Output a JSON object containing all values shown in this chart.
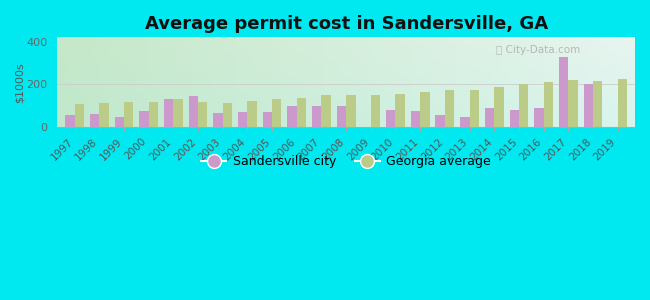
{
  "title": "Average permit cost in Sandersville, GA",
  "ylabel": "$1000s",
  "years": [
    1997,
    1998,
    1999,
    2000,
    2001,
    2002,
    2003,
    2004,
    2005,
    2006,
    2007,
    2008,
    2009,
    2010,
    2011,
    2012,
    2013,
    2014,
    2015,
    2016,
    2017,
    2018,
    2019
  ],
  "sandersville": [
    55,
    60,
    50,
    75,
    130,
    145,
    65,
    70,
    70,
    100,
    100,
    100,
    0,
    80,
    75,
    55,
    50,
    90,
    80,
    90,
    330,
    200,
    0
  ],
  "georgia": [
    110,
    115,
    120,
    120,
    130,
    120,
    115,
    125,
    130,
    135,
    150,
    150,
    150,
    155,
    165,
    175,
    175,
    190,
    200,
    210,
    220,
    215,
    225
  ],
  "city_color": "#cc99cc",
  "ga_color": "#bbcc88",
  "bg_outer": "#00e8f0",
  "bg_chart_tl": "#c5e8c8",
  "bg_chart_tr": "#e8f5f0",
  "bg_chart_bl": "#c0e8cc",
  "bg_chart_br": "#d8f5ee",
  "ylim": [
    0,
    420
  ],
  "yticks": [
    0,
    200,
    400
  ],
  "title_fontsize": 13,
  "bar_width": 0.38,
  "legend_city": "Sandersville city",
  "legend_ga": "Georgia average"
}
